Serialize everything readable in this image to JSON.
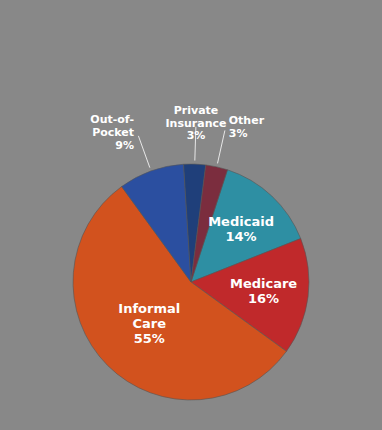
{
  "chart_data": {
    "type": "pie",
    "categories": [
      "Medicaid\n14%",
      "Medicare\n16%",
      "Informal\nCare\n55%",
      "Out-of-\nPocket\n9%",
      "Private\nInsurance\n3%",
      "Other\n3%"
    ],
    "values": [
      14,
      16,
      55,
      9,
      3,
      3
    ],
    "colors": [
      "#2E8FA3",
      "#C0292B",
      "#D2521E",
      "#2B4FA0",
      "#1F3F7A",
      "#7B2D3E"
    ]
  }
}
